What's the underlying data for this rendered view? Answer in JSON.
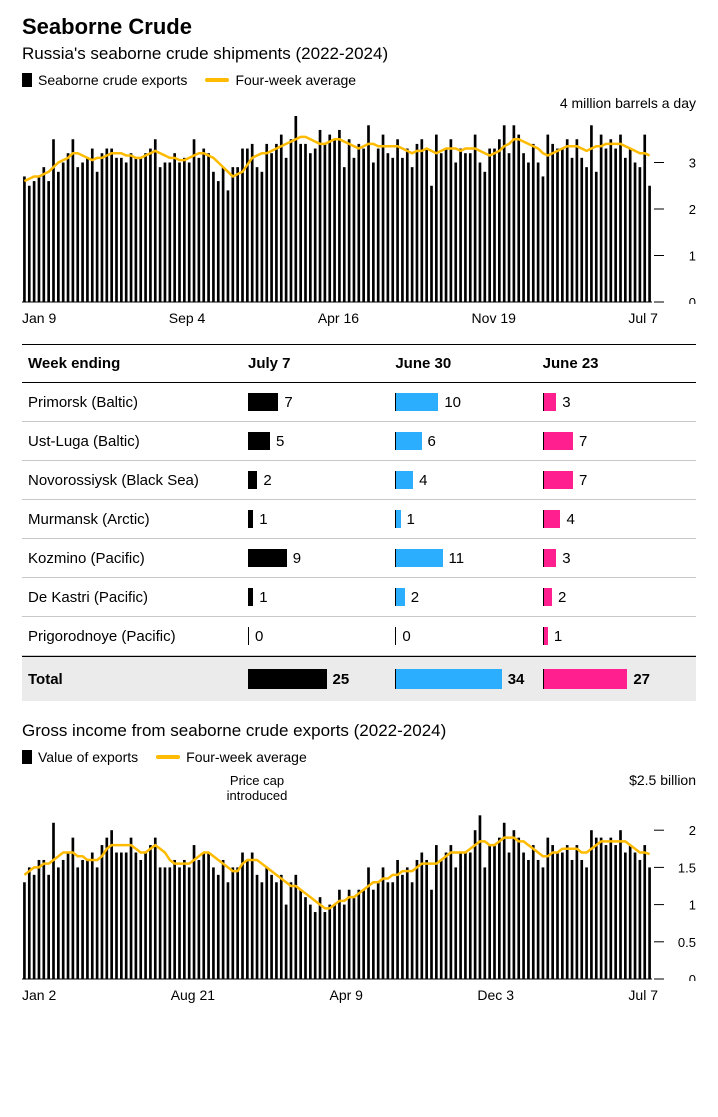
{
  "title": "Seaborne Crude",
  "chart1": {
    "subtitle": "Russia's seaborne crude shipments (2022-2024)",
    "legend_bar": "Seaborne crude exports",
    "legend_line": "Four-week average",
    "unit_label": "4 million barrels a day",
    "type": "bar+line",
    "bar_color": "#000000",
    "line_color": "#ffbb00",
    "line_width": 2.5,
    "ylim": [
      0,
      4
    ],
    "yticks": [
      0,
      1,
      2,
      3,
      4
    ],
    "x_labels": [
      "Jan 9",
      "Sep 4",
      "Apr 16",
      "Nov 19",
      "Jul 7"
    ],
    "bars": [
      2.7,
      2.5,
      2.6,
      2.7,
      2.9,
      2.6,
      3.5,
      2.8,
      3.0,
      3.2,
      3.5,
      2.9,
      3.0,
      3.1,
      3.3,
      2.8,
      3.2,
      3.3,
      3.3,
      3.1,
      3.1,
      3.0,
      3.2,
      3.1,
      3.1,
      3.2,
      3.3,
      3.5,
      2.9,
      3.0,
      3.0,
      3.2,
      3.0,
      3.1,
      3.0,
      3.5,
      3.1,
      3.3,
      3.2,
      2.8,
      2.6,
      2.9,
      2.4,
      2.9,
      2.9,
      3.3,
      3.3,
      3.4,
      2.9,
      2.8,
      3.4,
      3.2,
      3.4,
      3.6,
      3.1,
      3.5,
      4.0,
      3.4,
      3.4,
      3.2,
      3.3,
      3.7,
      3.4,
      3.6,
      3.5,
      3.7,
      2.9,
      3.5,
      3.1,
      3.4,
      3.3,
      3.8,
      3.0,
      3.3,
      3.6,
      3.2,
      3.1,
      3.5,
      3.1,
      3.3,
      2.9,
      3.4,
      3.5,
      3.3,
      2.5,
      3.6,
      3.2,
      3.3,
      3.5,
      3.0,
      3.3,
      3.2,
      3.2,
      3.6,
      3.0,
      2.8,
      3.3,
      3.3,
      3.5,
      3.8,
      3.2,
      3.8,
      3.6,
      3.2,
      3.0,
      3.4,
      3.0,
      2.7,
      3.6,
      3.4,
      3.3,
      3.3,
      3.5,
      3.1,
      3.5,
      3.1,
      2.9,
      3.8,
      2.8,
      3.6,
      3.3,
      3.5,
      3.3,
      3.6,
      3.1,
      3.3,
      3.0,
      2.9,
      3.6,
      2.5
    ],
    "avg": [
      2.6,
      2.65,
      2.7,
      2.7,
      2.75,
      2.8,
      2.9,
      3.0,
      3.05,
      3.1,
      3.2,
      3.2,
      3.15,
      3.1,
      3.05,
      3.1,
      3.1,
      3.15,
      3.2,
      3.2,
      3.2,
      3.15,
      3.15,
      3.1,
      3.1,
      3.15,
      3.2,
      3.25,
      3.2,
      3.15,
      3.1,
      3.1,
      3.05,
      3.05,
      3.1,
      3.15,
      3.2,
      3.2,
      3.15,
      3.1,
      3.0,
      2.9,
      2.8,
      2.7,
      2.75,
      2.8,
      2.95,
      3.1,
      3.15,
      3.2,
      3.2,
      3.25,
      3.3,
      3.35,
      3.4,
      3.45,
      3.5,
      3.55,
      3.55,
      3.5,
      3.45,
      3.4,
      3.4,
      3.45,
      3.5,
      3.5,
      3.45,
      3.4,
      3.35,
      3.3,
      3.35,
      3.4,
      3.4,
      3.35,
      3.35,
      3.35,
      3.35,
      3.35,
      3.3,
      3.25,
      3.2,
      3.25,
      3.25,
      3.3,
      3.25,
      3.2,
      3.25,
      3.3,
      3.3,
      3.3,
      3.25,
      3.3,
      3.3,
      3.3,
      3.25,
      3.2,
      3.15,
      3.2,
      3.25,
      3.35,
      3.4,
      3.5,
      3.5,
      3.45,
      3.4,
      3.35,
      3.3,
      3.2,
      3.15,
      3.2,
      3.25,
      3.3,
      3.35,
      3.35,
      3.35,
      3.3,
      3.25,
      3.3,
      3.35,
      3.35,
      3.4,
      3.4,
      3.4,
      3.4,
      3.35,
      3.3,
      3.25,
      3.2,
      3.2,
      3.15
    ]
  },
  "table": {
    "head": [
      "Week ending",
      "July 7",
      "June 30",
      "June 23"
    ],
    "col_colors": [
      "#000000",
      "#2caeff",
      "#ff1f8f"
    ],
    "bar_scale": 4.2,
    "rows": [
      {
        "label": "Primorsk (Baltic)",
        "v": [
          7,
          10,
          3
        ]
      },
      {
        "label": "Ust-Luga (Baltic)",
        "v": [
          5,
          6,
          7
        ]
      },
      {
        "label": "Novorossiysk (Black Sea)",
        "v": [
          2,
          4,
          7
        ]
      },
      {
        "label": "Murmansk (Arctic)",
        "v": [
          1,
          1,
          4
        ]
      },
      {
        "label": "Kozmino (Pacific)",
        "v": [
          9,
          11,
          3
        ]
      },
      {
        "label": "De Kastri (Pacific)",
        "v": [
          1,
          2,
          2
        ]
      },
      {
        "label": "Prigorodnoye (Pacific)",
        "v": [
          0,
          0,
          1
        ]
      }
    ],
    "total": {
      "label": "Total",
      "v": [
        25,
        34,
        27
      ],
      "bar_scale": 3.1
    }
  },
  "chart2": {
    "subtitle": "Gross income from seaborne crude exports (2022-2024)",
    "legend_bar": "Value of exports",
    "legend_line": "Four-week average",
    "unit_label": "$2.5 billion",
    "annotation": "Price cap introduced",
    "annotation_index": 48,
    "type": "bar+line",
    "bar_color": "#000000",
    "line_color": "#ffbb00",
    "line_width": 2.5,
    "ylim": [
      0,
      2.5
    ],
    "yticks": [
      0,
      0.5,
      1.0,
      1.5,
      2.0,
      2.5
    ],
    "x_labels": [
      "Jan 2",
      "Aug 21",
      "Apr 9",
      "Dec 3",
      "Jul 7"
    ],
    "bars": [
      1.3,
      1.5,
      1.4,
      1.6,
      1.6,
      1.4,
      2.1,
      1.5,
      1.6,
      1.7,
      1.9,
      1.5,
      1.6,
      1.6,
      1.7,
      1.5,
      1.8,
      1.9,
      2.0,
      1.7,
      1.7,
      1.7,
      1.9,
      1.7,
      1.6,
      1.7,
      1.8,
      1.9,
      1.5,
      1.5,
      1.5,
      1.6,
      1.5,
      1.6,
      1.5,
      1.8,
      1.6,
      1.7,
      1.7,
      1.5,
      1.4,
      1.6,
      1.3,
      1.5,
      1.5,
      1.7,
      1.6,
      1.7,
      1.4,
      1.3,
      1.5,
      1.4,
      1.3,
      1.4,
      1.0,
      1.3,
      1.4,
      1.2,
      1.1,
      1.0,
      0.9,
      1.1,
      0.9,
      1.0,
      1.0,
      1.2,
      1.0,
      1.2,
      1.1,
      1.2,
      1.2,
      1.5,
      1.2,
      1.3,
      1.5,
      1.3,
      1.3,
      1.6,
      1.4,
      1.5,
      1.3,
      1.6,
      1.7,
      1.6,
      1.2,
      1.8,
      1.6,
      1.7,
      1.8,
      1.5,
      1.7,
      1.7,
      1.7,
      2.0,
      2.2,
      1.5,
      1.8,
      1.8,
      1.9,
      2.1,
      1.7,
      2.0,
      1.9,
      1.7,
      1.6,
      1.8,
      1.6,
      1.5,
      1.9,
      1.8,
      1.7,
      1.7,
      1.8,
      1.6,
      1.8,
      1.6,
      1.5,
      2.0,
      1.9,
      1.9,
      1.8,
      1.9,
      1.8,
      2.0,
      1.7,
      1.8,
      1.7,
      1.6,
      1.8,
      1.5
    ],
    "avg": [
      1.4,
      1.45,
      1.5,
      1.5,
      1.55,
      1.55,
      1.6,
      1.65,
      1.7,
      1.7,
      1.7,
      1.65,
      1.65,
      1.6,
      1.6,
      1.6,
      1.65,
      1.75,
      1.8,
      1.8,
      1.8,
      1.8,
      1.8,
      1.75,
      1.7,
      1.7,
      1.75,
      1.8,
      1.75,
      1.7,
      1.6,
      1.55,
      1.55,
      1.55,
      1.55,
      1.6,
      1.65,
      1.7,
      1.7,
      1.65,
      1.6,
      1.55,
      1.5,
      1.45,
      1.45,
      1.55,
      1.6,
      1.6,
      1.6,
      1.55,
      1.5,
      1.45,
      1.4,
      1.35,
      1.3,
      1.25,
      1.25,
      1.2,
      1.15,
      1.1,
      1.05,
      1.0,
      0.95,
      0.95,
      1.0,
      1.05,
      1.05,
      1.1,
      1.1,
      1.15,
      1.2,
      1.25,
      1.3,
      1.3,
      1.35,
      1.35,
      1.4,
      1.4,
      1.45,
      1.45,
      1.45,
      1.5,
      1.55,
      1.55,
      1.55,
      1.55,
      1.6,
      1.65,
      1.7,
      1.7,
      1.7,
      1.7,
      1.75,
      1.8,
      1.85,
      1.85,
      1.8,
      1.8,
      1.85,
      1.9,
      1.9,
      1.9,
      1.85,
      1.85,
      1.8,
      1.75,
      1.7,
      1.65,
      1.65,
      1.7,
      1.7,
      1.75,
      1.75,
      1.75,
      1.75,
      1.7,
      1.7,
      1.75,
      1.8,
      1.85,
      1.85,
      1.85,
      1.85,
      1.85,
      1.85,
      1.8,
      1.75,
      1.7,
      1.7,
      1.68
    ]
  },
  "colors": {
    "bg": "#ffffff",
    "line": "#ffbb00",
    "bar": "#000000",
    "grey": "#ebebeb"
  }
}
